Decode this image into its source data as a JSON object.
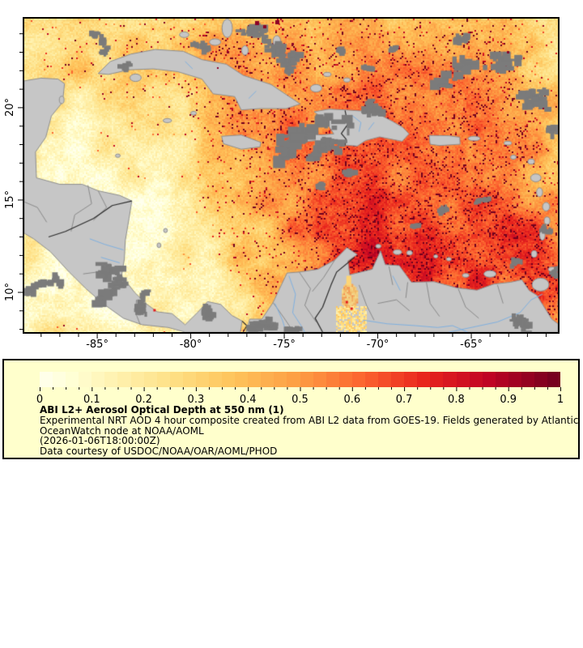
{
  "figure": {
    "kind": "satellite aerosol optical depth map with colorbar legend",
    "background": "#ffffff"
  },
  "map": {
    "extent": {
      "lon_min": -88.9,
      "lon_max": -60.37,
      "lat_min": 7.85,
      "lat_max": 24.82
    },
    "lat_ticks": [
      {
        "deg": 20,
        "label": "20°"
      },
      {
        "deg": 15,
        "label": "15°"
      },
      {
        "deg": 10,
        "label": "10°"
      }
    ],
    "lon_ticks": [
      {
        "deg": -85,
        "label": "-85°"
      },
      {
        "deg": -80,
        "label": "-80°"
      },
      {
        "deg": -75,
        "label": "-75°"
      },
      {
        "deg": -70,
        "label": "-70°"
      },
      {
        "deg": -65,
        "label": "-65°"
      }
    ],
    "minor_tick_step_deg": 1,
    "colors": {
      "frame": "#000000",
      "land_no_data": "#c6c6c6",
      "cloud_no_data": "#7b7b7b",
      "coastline": "#8f8f8f",
      "admin_border": "#8a8a8a",
      "country_border": "#2b2b2b",
      "river": "#7fb0e0",
      "very_high_aod_speck": "#8c0026"
    }
  },
  "legend": {
    "background": "#ffffcc",
    "border_color": "#000000",
    "title": "ABI L2+ Aerosol Optical Depth at 550 nm (1)",
    "lines": [
      "Experimental NRT AOD 4 hour composite created from ABI L2 data from GOES-19. Fields generated by Atlantic",
      "OceanWatch node at NOAA/AOML",
      "(2026-01-06T18:00:00Z)",
      "Data courtesy of USDOC/NOAA/OAR/AOML/PHOD"
    ],
    "colorbar": {
      "min": 0,
      "max": 1,
      "tick_labels": [
        "0",
        "0.1",
        "0.2",
        "0.3",
        "0.4",
        "0.5",
        "0.6",
        "0.7",
        "0.8",
        "0.9",
        "1"
      ],
      "minor_tick_step": 0.025,
      "levels": 40,
      "colormap": "YlOrRd",
      "stops": [
        {
          "p": 0.0,
          "c": "#ffffee"
        },
        {
          "p": 0.06,
          "c": "#ffffd6"
        },
        {
          "p": 0.14,
          "c": "#fff3b2"
        },
        {
          "p": 0.25,
          "c": "#fee187"
        },
        {
          "p": 0.37,
          "c": "#fec45b"
        },
        {
          "p": 0.5,
          "c": "#fd9c43"
        },
        {
          "p": 0.62,
          "c": "#fc642f"
        },
        {
          "p": 0.74,
          "c": "#e8241d"
        },
        {
          "p": 0.86,
          "c": "#c00324"
        },
        {
          "p": 1.0,
          "c": "#70001e"
        }
      ]
    }
  }
}
